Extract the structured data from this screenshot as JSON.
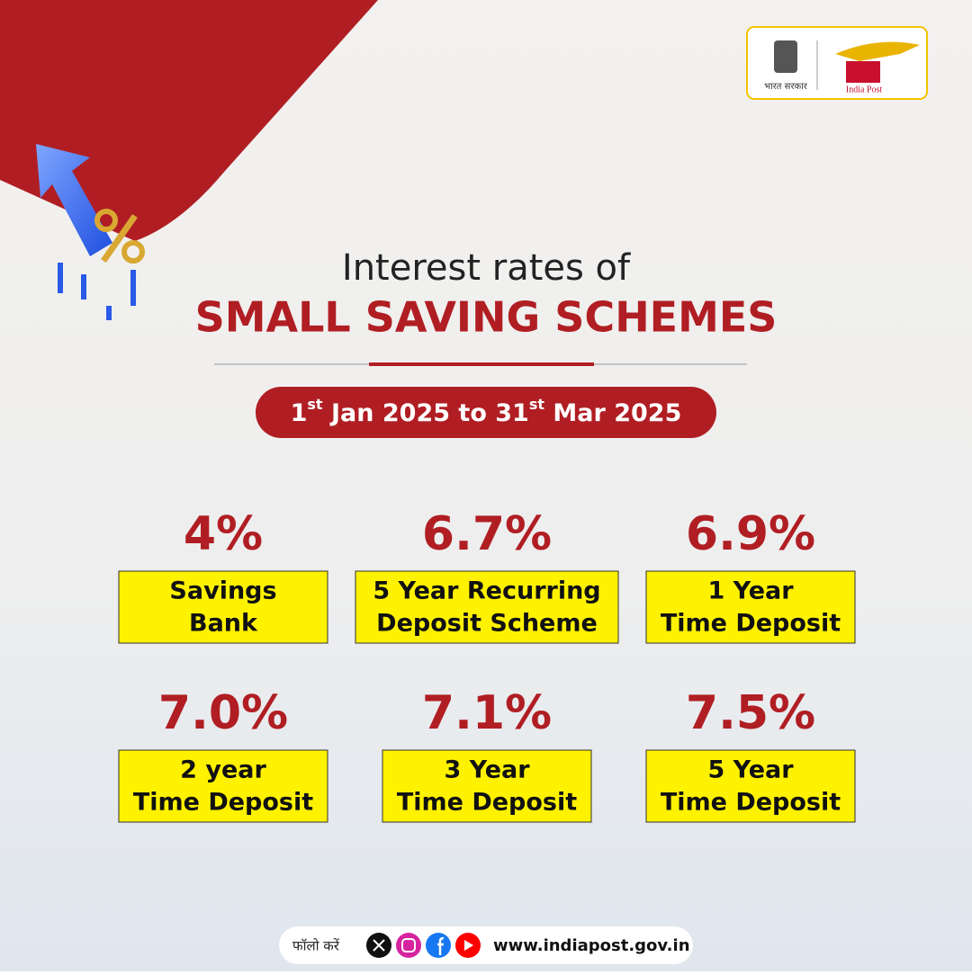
{
  "header": {
    "govt_label": "भारत सरकार",
    "brand": "India Post"
  },
  "title": {
    "line1": "Interest rates of",
    "line2": "SMALL SAVING SCHEMES"
  },
  "period": {
    "start_day": "1",
    "start_suffix": "st",
    "middle": " Jan 2025 to 31",
    "end_suffix": "st",
    "end": " Mar 2025"
  },
  "schemes": [
    {
      "rate": "4%",
      "label": [
        "Savings",
        "Bank"
      ]
    },
    {
      "rate": "6.7%",
      "label": [
        "5 Year Recurring",
        "Deposit Scheme"
      ]
    },
    {
      "rate": "6.9%",
      "label": [
        "1 Year",
        "Time Deposit"
      ]
    },
    {
      "rate": "7.0%",
      "label": [
        "2 year",
        "Time Deposit"
      ]
    },
    {
      "rate": "7.1%",
      "label": [
        "3 Year",
        "Time Deposit"
      ]
    },
    {
      "rate": "7.5%",
      "label": [
        "5 Year",
        "Time Deposit"
      ]
    }
  ],
  "footer": {
    "follow": "फॉलो करें",
    "website": "www.indiapost.gov.in"
  }
}
